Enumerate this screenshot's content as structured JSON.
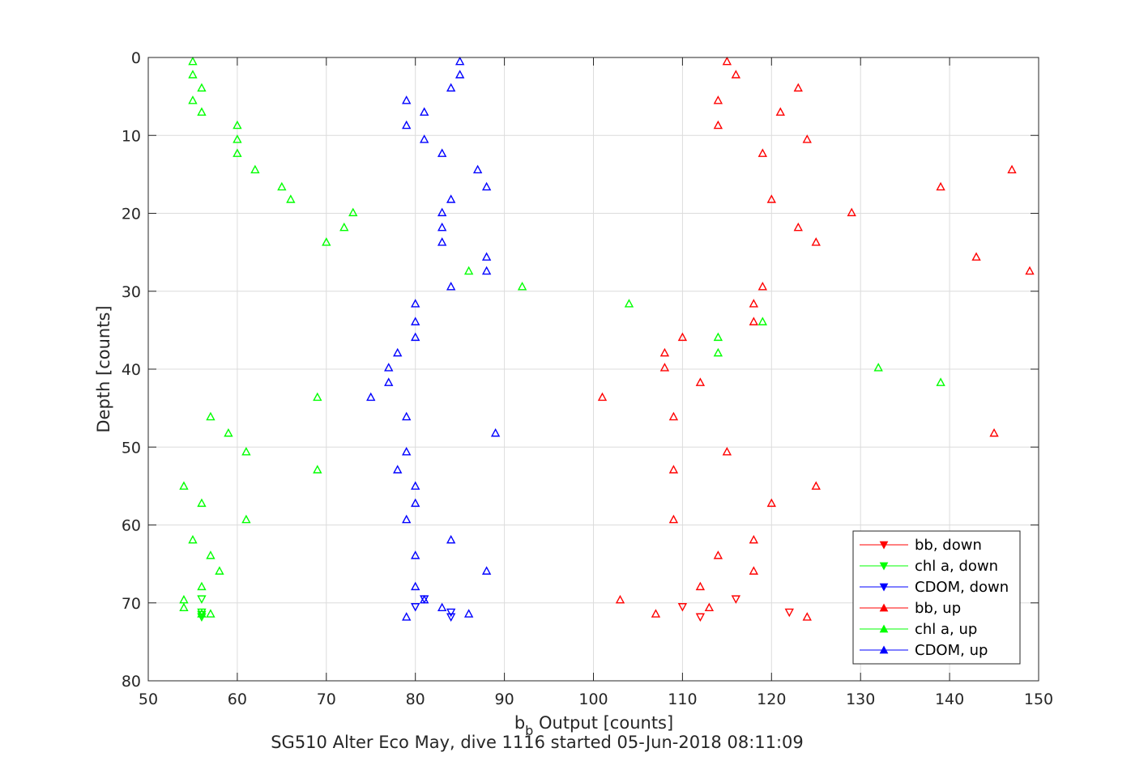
{
  "chart_data": {
    "type": "scatter",
    "title": "",
    "caption": "SG510 Alter Eco May, dive 1116 started 05-Jun-2018 08:11:09",
    "xlabel_main": "b",
    "xlabel_sub": "b",
    "xlabel_rest": " Output [counts]",
    "ylabel": "Depth [counts]",
    "xlim": [
      50,
      150
    ],
    "ylim": [
      0,
      80
    ],
    "y_reversed": true,
    "grid": true,
    "xticks": [
      50,
      60,
      70,
      80,
      90,
      100,
      110,
      120,
      130,
      140,
      150
    ],
    "yticks": [
      0,
      10,
      20,
      30,
      40,
      50,
      60,
      70,
      80
    ],
    "legend_position": "bottom-right",
    "series": [
      {
        "name": "bb, down",
        "color": "#ff0000",
        "marker": "triangle-down",
        "points": [
          [
            110,
            70.5
          ],
          [
            112,
            71.8
          ],
          [
            116,
            69.5
          ],
          [
            122,
            71.2
          ]
        ]
      },
      {
        "name": "chl a, down",
        "color": "#00ff00",
        "marker": "triangle-down",
        "points": [
          [
            56,
            71.5
          ],
          [
            56,
            71.8
          ],
          [
            56,
            69.5
          ],
          [
            56,
            71.2
          ]
        ]
      },
      {
        "name": "CDOM, down",
        "color": "#0000ff",
        "marker": "triangle-down",
        "points": [
          [
            80,
            70.5
          ],
          [
            81,
            69.5
          ],
          [
            84,
            71.8
          ],
          [
            84,
            71.2
          ]
        ]
      },
      {
        "name": "bb, up",
        "color": "#ff0000",
        "marker": "triangle-up",
        "points": [
          [
            115,
            0.5
          ],
          [
            116,
            2.2
          ],
          [
            123,
            3.9
          ],
          [
            114,
            5.5
          ],
          [
            121,
            7
          ],
          [
            114,
            8.7
          ],
          [
            124,
            10.5
          ],
          [
            119,
            12.3
          ],
          [
            147,
            14.4
          ],
          [
            139,
            16.6
          ],
          [
            120,
            18.2
          ],
          [
            129,
            19.9
          ],
          [
            123,
            21.8
          ],
          [
            125,
            23.7
          ],
          [
            143,
            25.6
          ],
          [
            149,
            27.4
          ],
          [
            119,
            29.4
          ],
          [
            118,
            31.6
          ],
          [
            118,
            33.9
          ],
          [
            110,
            35.9
          ],
          [
            108,
            37.9
          ],
          [
            108,
            39.8
          ],
          [
            112,
            41.7
          ],
          [
            101,
            43.6
          ],
          [
            109,
            46.1
          ],
          [
            145,
            48.2
          ],
          [
            115,
            50.6
          ],
          [
            109,
            52.9
          ],
          [
            125,
            55
          ],
          [
            120,
            57.2
          ],
          [
            109,
            59.3
          ],
          [
            118,
            61.9
          ],
          [
            114,
            63.9
          ],
          [
            118,
            65.9
          ],
          [
            112,
            67.9
          ],
          [
            103,
            69.6
          ],
          [
            113,
            70.6
          ],
          [
            107,
            71.4
          ],
          [
            124,
            71.8
          ]
        ]
      },
      {
        "name": "chl a, up",
        "color": "#00ff00",
        "marker": "triangle-up",
        "points": [
          [
            55,
            0.5
          ],
          [
            55,
            2.2
          ],
          [
            56,
            3.9
          ],
          [
            55,
            5.5
          ],
          [
            56,
            7
          ],
          [
            60,
            8.7
          ],
          [
            60,
            10.5
          ],
          [
            60,
            12.3
          ],
          [
            62,
            14.4
          ],
          [
            65,
            16.6
          ],
          [
            66,
            18.2
          ],
          [
            73,
            19.9
          ],
          [
            72,
            21.8
          ],
          [
            70,
            23.7
          ],
          [
            86,
            27.4
          ],
          [
            92,
            29.4
          ],
          [
            104,
            31.6
          ],
          [
            119,
            33.9
          ],
          [
            114,
            35.9
          ],
          [
            114,
            37.9
          ],
          [
            132,
            39.8
          ],
          [
            139,
            41.7
          ],
          [
            69,
            43.6
          ],
          [
            57,
            46.1
          ],
          [
            59,
            48.2
          ],
          [
            61,
            50.6
          ],
          [
            69,
            52.9
          ],
          [
            54,
            55
          ],
          [
            56,
            57.2
          ],
          [
            61,
            59.3
          ],
          [
            55,
            61.9
          ],
          [
            57,
            63.9
          ],
          [
            58,
            65.9
          ],
          [
            56,
            67.9
          ],
          [
            54,
            69.6
          ],
          [
            54,
            70.6
          ],
          [
            56,
            71.4
          ],
          [
            57,
            71.4
          ]
        ]
      },
      {
        "name": "CDOM, up",
        "color": "#0000ff",
        "marker": "triangle-up",
        "points": [
          [
            85,
            0.5
          ],
          [
            85,
            2.2
          ],
          [
            84,
            3.9
          ],
          [
            79,
            5.5
          ],
          [
            81,
            7
          ],
          [
            79,
            8.7
          ],
          [
            81,
            10.5
          ],
          [
            83,
            12.3
          ],
          [
            87,
            14.4
          ],
          [
            88,
            16.6
          ],
          [
            84,
            18.2
          ],
          [
            83,
            19.9
          ],
          [
            83,
            21.8
          ],
          [
            83,
            23.7
          ],
          [
            88,
            25.6
          ],
          [
            88,
            27.4
          ],
          [
            84,
            29.4
          ],
          [
            80,
            31.6
          ],
          [
            80,
            33.9
          ],
          [
            80,
            35.9
          ],
          [
            78,
            37.9
          ],
          [
            77,
            39.8
          ],
          [
            77,
            41.7
          ],
          [
            75,
            43.6
          ],
          [
            79,
            46.1
          ],
          [
            89,
            48.2
          ],
          [
            79,
            50.6
          ],
          [
            78,
            52.9
          ],
          [
            80,
            55
          ],
          [
            80,
            57.2
          ],
          [
            79,
            59.3
          ],
          [
            84,
            61.9
          ],
          [
            80,
            63.9
          ],
          [
            88,
            65.9
          ],
          [
            80,
            67.9
          ],
          [
            81,
            69.6
          ],
          [
            83,
            70.6
          ],
          [
            86,
            71.4
          ],
          [
            79,
            71.8
          ]
        ]
      }
    ]
  }
}
